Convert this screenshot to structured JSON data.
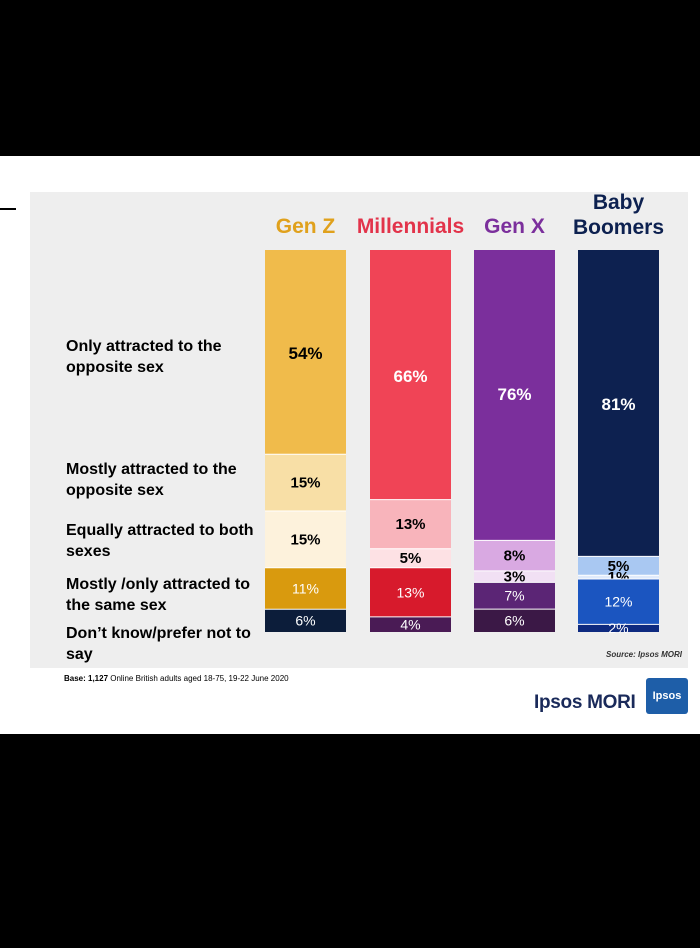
{
  "chart_data": {
    "type": "bar",
    "stacked": true,
    "title": "",
    "categories": [
      "Gen Z",
      "Millennials",
      "Gen X",
      "Baby Boomers"
    ],
    "category_label_lines": [
      [
        "Gen Z"
      ],
      [
        "Millennials"
      ],
      [
        "Gen X"
      ],
      [
        "Baby",
        "Boomers"
      ]
    ],
    "series": [
      {
        "name": "Only attracted to the opposite sex",
        "values": [
          54,
          66,
          76,
          81
        ],
        "colors": [
          "#f0bb4b",
          "#f04456",
          "#7b2f9c",
          "#0d2150"
        ],
        "label_colors": [
          "#000000",
          "#ffffff",
          "#ffffff",
          "#ffffff"
        ]
      },
      {
        "name": "Mostly attracted to the opposite sex",
        "values": [
          15,
          13,
          8,
          5
        ],
        "colors": [
          "#f8dfa6",
          "#f8b4bb",
          "#d9a9e2",
          "#a9c8f2"
        ],
        "label_colors": [
          "#000000",
          "#000000",
          "#000000",
          "#000000"
        ]
      },
      {
        "name": "Equally attracted to both sexes",
        "values": [
          15,
          5,
          3,
          1
        ],
        "colors": [
          "#fdf2dc",
          "#fde1e4",
          "#f1e0f4",
          "#dfeafb"
        ],
        "label_colors": [
          "#000000",
          "#000000",
          "#000000",
          "#000000"
        ]
      },
      {
        "name": "Mostly /only attracted to the same sex",
        "values": [
          11,
          13,
          7,
          12
        ],
        "colors": [
          "#d99a0e",
          "#d71a2c",
          "#5b2575",
          "#1b55c0"
        ],
        "label_colors": [
          "#ffffff",
          "#ffffff",
          "#ffffff",
          "#ffffff"
        ]
      },
      {
        "name": "Don’t know/prefer not to say",
        "values": [
          6,
          4,
          6,
          2
        ],
        "colors": [
          "#0c1d3a",
          "#4a1b55",
          "#3b1846",
          "#0e2a80"
        ],
        "label_colors": [
          "#ffffff",
          "#ffffff",
          "#ffffff",
          "#ffffff"
        ]
      }
    ],
    "value_suffix": "%",
    "ylim": [
      0,
      100
    ],
    "header_colors": [
      "#e0a11c",
      "#e2334a",
      "#7b2f9c",
      "#0d2150"
    ],
    "legend": "left"
  },
  "row_labels": [
    "Only attracted to the opposite sex",
    "Mostly attracted to the opposite sex",
    "Equally attracted to both sexes",
    "Mostly /only attracted to the same sex",
    "Don’t know/prefer not to say"
  ],
  "footer": {
    "source": "Source: Ipsos MORI",
    "base_bold": "Base: 1,127",
    "base_rest": " Online British adults aged 18-75, 19-22 June 2020"
  },
  "brand": {
    "name": "Ipsos MORI",
    "logo_text": "Ipsos"
  }
}
